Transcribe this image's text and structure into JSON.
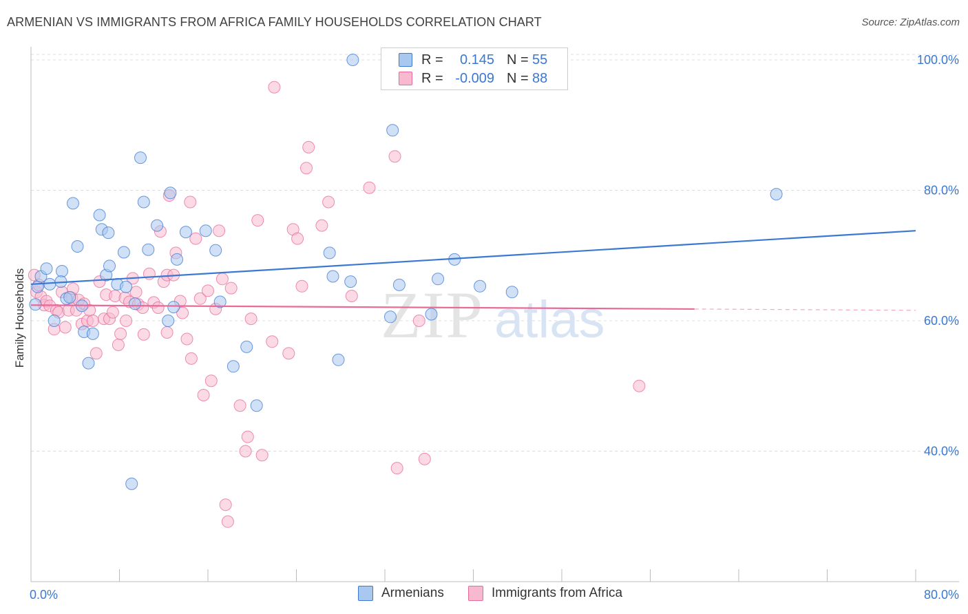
{
  "title": "ARMENIAN VS IMMIGRANTS FROM AFRICA FAMILY HOUSEHOLDS CORRELATION CHART",
  "source": "Source: ZipAtlas.com",
  "watermark": {
    "zip": "ZIP",
    "atlas": "atlas"
  },
  "legend_top": [
    {
      "r_label": "R =",
      "r_value": "0.145",
      "n_label": "N =",
      "n_value": "55",
      "color": "#a9c8f0",
      "stroke": "#3a78d2"
    },
    {
      "r_label": "R =",
      "r_value": "-0.009",
      "n_label": "N =",
      "n_value": "88",
      "color": "#f7b9cf",
      "stroke": "#e86a98"
    }
  ],
  "legend_bottom": [
    {
      "label": "Armenians",
      "color": "#a9c8f0",
      "stroke": "#3a78d2"
    },
    {
      "label": "Immigrants from Africa",
      "color": "#f7b9cf",
      "stroke": "#e86a98"
    }
  ],
  "chart_data": {
    "type": "scatter",
    "title": "ARMENIAN VS IMMIGRANTS FROM AFRICA FAMILY HOUSEHOLDS CORRELATION CHART",
    "xlabel": "",
    "ylabel": "Family Households",
    "xlim": [
      0,
      80
    ],
    "ylim": [
      20,
      102
    ],
    "x_tick_labels": [
      "0.0%",
      "80.0%"
    ],
    "y_ticks": [
      40,
      60,
      80,
      100
    ],
    "y_tick_labels": [
      "40.0%",
      "60.0%",
      "80.0%",
      "100.0%"
    ],
    "grid": true,
    "series": [
      {
        "name": "Armenians",
        "color": "#3a78d2",
        "fill": "#a9c8f0",
        "trend": {
          "x": [
            0,
            80
          ],
          "y": [
            65.6,
            73.8
          ],
          "dashed_from": null
        },
        "points": [
          [
            0.4,
            62.5
          ],
          [
            0.6,
            65.2
          ],
          [
            0.9,
            66.8
          ],
          [
            1.4,
            68.0
          ],
          [
            1.7,
            65.6
          ],
          [
            2.1,
            60.0
          ],
          [
            2.8,
            67.6
          ],
          [
            2.7,
            66.0
          ],
          [
            3.2,
            63.4
          ],
          [
            3.5,
            63.6
          ],
          [
            3.8,
            78.0
          ],
          [
            4.2,
            71.4
          ],
          [
            4.6,
            62.3
          ],
          [
            4.8,
            58.3
          ],
          [
            5.2,
            53.5
          ],
          [
            5.6,
            58.0
          ],
          [
            6.2,
            76.2
          ],
          [
            6.4,
            74.0
          ],
          [
            6.8,
            67.0
          ],
          [
            7.0,
            73.5
          ],
          [
            7.1,
            68.4
          ],
          [
            7.8,
            65.6
          ],
          [
            8.4,
            70.5
          ],
          [
            8.6,
            65.2
          ],
          [
            9.1,
            35.0
          ],
          [
            9.4,
            62.6
          ],
          [
            9.9,
            85.0
          ],
          [
            10.2,
            78.2
          ],
          [
            10.6,
            70.9
          ],
          [
            11.4,
            74.6
          ],
          [
            12.4,
            60.0
          ],
          [
            12.6,
            79.6
          ],
          [
            12.9,
            62.1
          ],
          [
            13.2,
            69.4
          ],
          [
            14.0,
            73.6
          ],
          [
            15.8,
            73.8
          ],
          [
            16.7,
            70.8
          ],
          [
            17.1,
            62.9
          ],
          [
            18.3,
            53.0
          ],
          [
            19.5,
            56.0
          ],
          [
            20.4,
            47.0
          ],
          [
            27.0,
            70.4
          ],
          [
            27.3,
            66.8
          ],
          [
            27.8,
            54.0
          ],
          [
            28.9,
            66.0
          ],
          [
            29.1,
            100.0
          ],
          [
            32.5,
            60.6
          ],
          [
            32.7,
            89.2
          ],
          [
            33.3,
            65.5
          ],
          [
            36.2,
            61.0
          ],
          [
            36.8,
            66.4
          ],
          [
            38.3,
            69.4
          ],
          [
            40.6,
            65.3
          ],
          [
            43.5,
            64.4
          ],
          [
            67.4,
            79.4
          ]
        ]
      },
      {
        "name": "Immigrants from Africa",
        "color": "#e86a98",
        "fill": "#f7b9cf",
        "trend": {
          "x": [
            0,
            80
          ],
          "y": [
            62.4,
            61.6
          ],
          "dashed_from": 60
        },
        "points": [
          [
            0.3,
            67.0
          ],
          [
            0.5,
            64.4
          ],
          [
            0.7,
            65.5
          ],
          [
            0.9,
            63.7
          ],
          [
            1.2,
            62.4
          ],
          [
            1.4,
            63.0
          ],
          [
            1.7,
            62.3
          ],
          [
            2.1,
            58.7
          ],
          [
            2.3,
            61.6
          ],
          [
            2.5,
            61.3
          ],
          [
            2.8,
            64.4
          ],
          [
            3.1,
            59.0
          ],
          [
            3.4,
            61.6
          ],
          [
            3.7,
            63.5
          ],
          [
            3.8,
            64.9
          ],
          [
            4.1,
            61.6
          ],
          [
            4.3,
            63.2
          ],
          [
            4.6,
            59.5
          ],
          [
            4.8,
            62.6
          ],
          [
            5.1,
            60.0
          ],
          [
            5.3,
            61.6
          ],
          [
            5.6,
            60.0
          ],
          [
            5.9,
            55.0
          ],
          [
            6.2,
            66.0
          ],
          [
            6.6,
            60.3
          ],
          [
            6.8,
            64.0
          ],
          [
            7.1,
            60.3
          ],
          [
            7.4,
            61.3
          ],
          [
            7.6,
            63.8
          ],
          [
            7.9,
            56.3
          ],
          [
            8.1,
            58.0
          ],
          [
            8.5,
            63.5
          ],
          [
            8.6,
            60.0
          ],
          [
            8.9,
            62.9
          ],
          [
            9.2,
            66.5
          ],
          [
            9.5,
            64.4
          ],
          [
            9.7,
            62.5
          ],
          [
            10.1,
            62.0
          ],
          [
            10.2,
            57.9
          ],
          [
            10.7,
            67.2
          ],
          [
            11.1,
            62.8
          ],
          [
            11.5,
            62.0
          ],
          [
            11.7,
            73.7
          ],
          [
            12.0,
            66.0
          ],
          [
            12.3,
            67.0
          ],
          [
            12.3,
            58.2
          ],
          [
            12.5,
            79.2
          ],
          [
            12.9,
            67.0
          ],
          [
            13.1,
            70.4
          ],
          [
            13.5,
            63.0
          ],
          [
            13.7,
            61.2
          ],
          [
            14.1,
            57.2
          ],
          [
            14.4,
            78.2
          ],
          [
            14.5,
            54.2
          ],
          [
            14.9,
            72.6
          ],
          [
            15.3,
            63.4
          ],
          [
            15.6,
            48.6
          ],
          [
            16.0,
            64.6
          ],
          [
            16.3,
            50.8
          ],
          [
            16.7,
            61.8
          ],
          [
            17.0,
            73.8
          ],
          [
            17.3,
            66.4
          ],
          [
            17.6,
            31.8
          ],
          [
            17.8,
            29.2
          ],
          [
            18.1,
            65.0
          ],
          [
            18.9,
            47.0
          ],
          [
            19.4,
            40.0
          ],
          [
            19.6,
            42.2
          ],
          [
            19.9,
            60.3
          ],
          [
            20.5,
            75.4
          ],
          [
            20.9,
            39.4
          ],
          [
            21.8,
            56.8
          ],
          [
            22.0,
            95.8
          ],
          [
            23.3,
            55.0
          ],
          [
            23.7,
            74.0
          ],
          [
            24.1,
            72.6
          ],
          [
            24.5,
            65.3
          ],
          [
            24.9,
            83.4
          ],
          [
            25.1,
            86.6
          ],
          [
            26.3,
            74.6
          ],
          [
            26.9,
            78.2
          ],
          [
            29.0,
            63.8
          ],
          [
            30.6,
            80.4
          ],
          [
            32.9,
            85.2
          ],
          [
            33.1,
            37.4
          ],
          [
            35.1,
            60.0
          ],
          [
            35.6,
            38.8
          ],
          [
            55.0,
            50.0
          ]
        ]
      }
    ]
  }
}
